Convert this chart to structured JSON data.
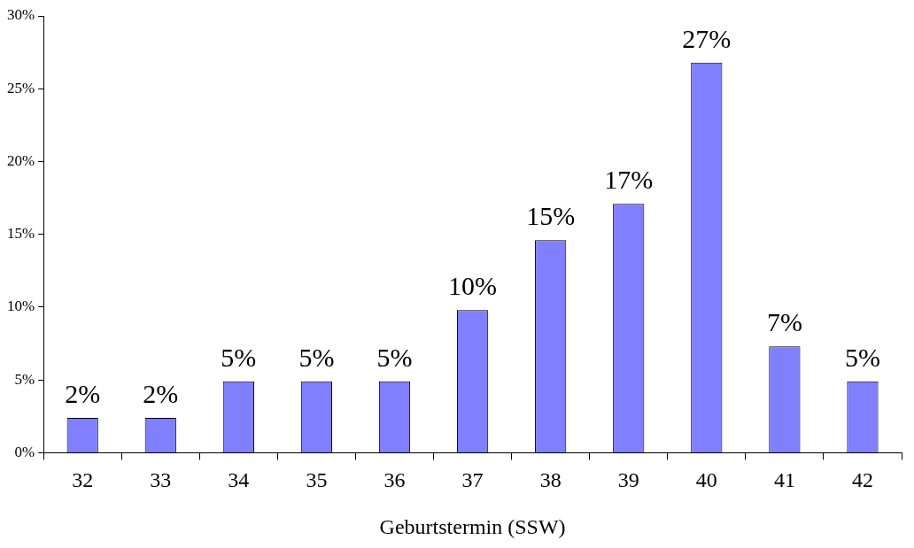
{
  "chart_data": {
    "type": "bar",
    "xlabel": "Geburtstermin (SSW)",
    "categories": [
      "32",
      "33",
      "34",
      "35",
      "36",
      "37",
      "38",
      "39",
      "40",
      "41",
      "42"
    ],
    "values": [
      2.4,
      2.4,
      4.9,
      4.9,
      4.9,
      9.8,
      14.6,
      17.1,
      26.8,
      7.3,
      4.9
    ],
    "value_labels": [
      "2%",
      "2%",
      "5%",
      "5%",
      "5%",
      "10%",
      "15%",
      "17%",
      "27%",
      "7%",
      "5%"
    ],
    "color": "#8080ff",
    "ylim": [
      0,
      30
    ],
    "yticks": [
      {
        "value": 0,
        "label": "0%"
      },
      {
        "value": 5,
        "label": "5%"
      },
      {
        "value": 10,
        "label": "10%"
      },
      {
        "value": 15,
        "label": "15%"
      },
      {
        "value": 20,
        "label": "20%"
      },
      {
        "value": 25,
        "label": "25%"
      },
      {
        "value": 30,
        "label": "30%"
      }
    ],
    "grid": false,
    "legend": false
  }
}
